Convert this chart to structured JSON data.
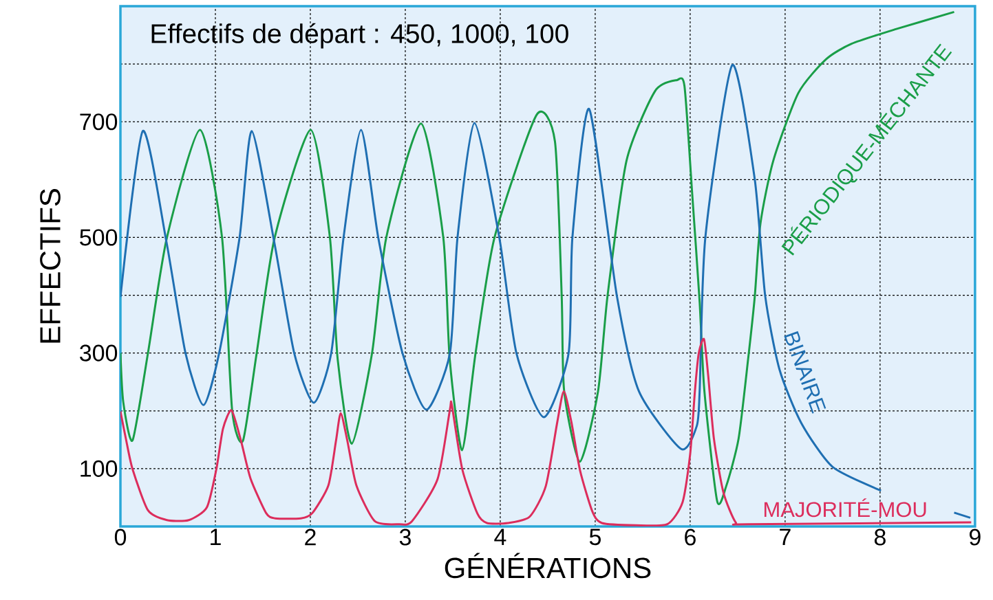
{
  "chart_data": {
    "type": "line",
    "xlabel": "GÉNÉRATIONS",
    "ylabel": "EFFECTIFS",
    "annotations": [
      "Effectifs de départ : 450, 1000, 100"
    ],
    "xlim": [
      0,
      9
    ],
    "ylim": [
      0,
      900
    ],
    "xticks": [
      0,
      1,
      2,
      3,
      4,
      5,
      6,
      7,
      8,
      9
    ],
    "yticks": [
      100,
      {
        "value": 200,
        "label": null
      },
      300,
      {
        "value": 400,
        "label": null
      },
      500,
      {
        "value": 600,
        "label": null
      },
      700,
      {
        "value": 800,
        "label": null
      }
    ],
    "grid": true,
    "legend": false,
    "line_style": "solid",
    "series": [
      {
        "name": "PÉRIODIQUE-MÉCHANTE",
        "color": "#1a9e48",
        "x": [
          0,
          0.03,
          0.128,
          0.29,
          0.49,
          0.838,
          1.07,
          1.176,
          1.29,
          1.435,
          1.625,
          2.003,
          2.206,
          2.288,
          2.436,
          2.65,
          2.8,
          3.165,
          3.4,
          3.468,
          3.598,
          3.74,
          3.94,
          4.383,
          4.576,
          4.647,
          4.673,
          4.838,
          5.03,
          5.13,
          5.33,
          5.63,
          5.857,
          5.94,
          6.02,
          6.1,
          6.15,
          6.284,
          6.38,
          6.51,
          6.61,
          6.68,
          6.74,
          6.876,
          7.14,
          7.43,
          7.7,
          8.16,
          8.78
        ],
        "values": [
          300,
          215,
          149,
          300,
          500,
          686,
          500,
          202,
          148,
          300,
          500,
          686,
          500,
          289,
          143,
          300,
          500,
          697,
          500,
          289,
          132,
          300,
          500,
          712,
          666,
          399,
          234,
          112,
          234,
          399,
          633,
          753,
          772,
          762,
          579,
          388,
          234,
          44,
          70,
          152,
          289,
          397,
          524,
          633,
          750,
          808,
          835,
          860,
          890
        ]
      },
      {
        "name": "BINAIRE",
        "color": "#1f6fb2",
        "x": [
          0,
          0.235,
          0.485,
          0.685,
          0.874,
          1.04,
          1.255,
          1.383,
          1.62,
          1.83,
          2.036,
          2.22,
          2.35,
          2.534,
          2.715,
          2.97,
          3.222,
          3.47,
          3.55,
          3.728,
          3.99,
          4.17,
          4.46,
          4.72,
          4.76,
          4.937,
          5.23,
          5.46,
          5.906,
          6.07,
          6.1,
          6.16,
          6.443,
          6.68,
          6.79,
          6.94,
          7.17,
          7.5,
          8.01,
          8.4,
          8.78,
          8.95
        ],
        "values": [
          397,
          684,
          492,
          300,
          210,
          300,
          500,
          684,
          492,
          300,
          214,
          300,
          500,
          686,
          500,
          300,
          202,
          300,
          500,
          698,
          500,
          300,
          189,
          300,
          500,
          722,
          397,
          234,
          134,
          174,
          234,
          500,
          798,
          601,
          399,
          272,
          179,
          103,
          62,
          null,
          24,
          15
        ]
      },
      {
        "name": "MAJORITÉ-MOU",
        "color": "#dc2d5c",
        "x": [
          0,
          0.062,
          0.128,
          0.29,
          0.49,
          0.72,
          0.91,
          1.01,
          1.08,
          1.17,
          1.27,
          1.37,
          1.535,
          1.63,
          1.9,
          2.02,
          2.19,
          2.27,
          2.32,
          2.39,
          2.485,
          2.68,
          2.94,
          3.07,
          3.34,
          3.47,
          3.49,
          3.6,
          3.76,
          3.86,
          4.08,
          4.31,
          4.48,
          4.6,
          4.67,
          4.75,
          4.84,
          4.97,
          5.07,
          5.43,
          5.76,
          5.92,
          6.0,
          6.05,
          6.09,
          6.146,
          6.19,
          6.25,
          6.35,
          6.48,
          6.61,
          8.96
        ],
        "values": [
          199,
          148,
          99,
          28,
          11,
          11,
          33,
          99,
          169,
          201,
          148,
          83,
          23,
          14,
          14,
          23,
          71,
          148,
          196,
          148,
          71,
          9,
          4,
          9,
          82,
          202,
          210,
          99,
          22,
          6,
          6,
          17,
          70,
          180,
          234,
          180,
          97,
          26,
          6,
          2,
          4,
          42,
          125,
          234,
          299,
          324,
          261,
          152,
          59,
          7,
          4,
          7
        ]
      }
    ]
  }
}
